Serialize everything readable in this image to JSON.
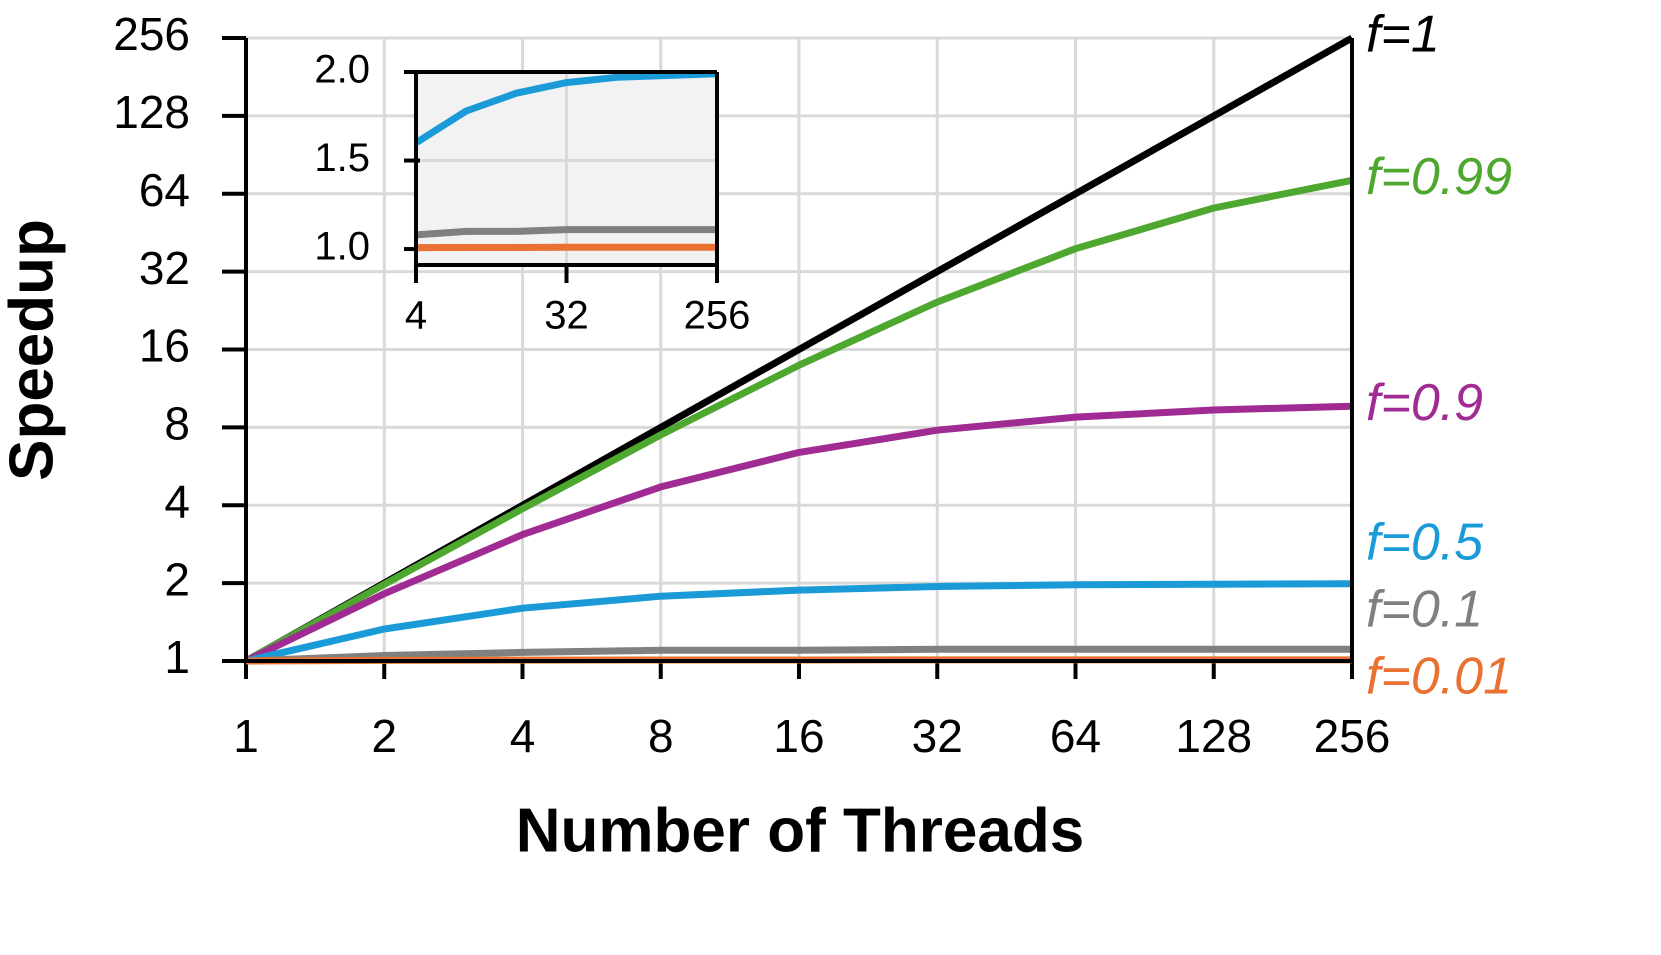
{
  "chart_data": [
    {
      "type": "line",
      "x_label": "Number of Threads",
      "y_label": "Speedup",
      "x": [
        1,
        2,
        4,
        8,
        16,
        32,
        64,
        128,
        256
      ],
      "xlim": [
        1,
        256
      ],
      "ylim": [
        1,
        256
      ],
      "xticks": [
        1,
        2,
        4,
        8,
        16,
        32,
        64,
        128,
        256
      ],
      "yticks": [
        1,
        2,
        4,
        8,
        16,
        32,
        64,
        128,
        256
      ],
      "log_x": true,
      "log_y": true,
      "grid": true,
      "series": [
        {
          "name": "f=1",
          "color": "#000000",
          "values": [
            1,
            2,
            4,
            8,
            16,
            32,
            64,
            128,
            256
          ]
        },
        {
          "name": "f=0.99",
          "color": "#4ea72e",
          "values": [
            1,
            1.98,
            3.88,
            7.48,
            13.91,
            24.43,
            39.26,
            56.39,
            72.11
          ]
        },
        {
          "name": "f=0.9",
          "color": "#a02b93",
          "values": [
            1,
            1.82,
            3.08,
            4.71,
            6.4,
            7.8,
            8.77,
            9.34,
            9.66
          ]
        },
        {
          "name": "f=0.5",
          "color": "#1a9bd7",
          "values": [
            1,
            1.33,
            1.6,
            1.78,
            1.88,
            1.94,
            1.97,
            1.98,
            1.99
          ]
        },
        {
          "name": "f=0.1",
          "color": "#808080",
          "values": [
            1,
            1.05,
            1.08,
            1.1,
            1.1,
            1.11,
            1.11,
            1.11,
            1.11
          ]
        },
        {
          "name": "f=0.01",
          "color": "#e97132",
          "values": [
            1,
            1.005,
            1.008,
            1.009,
            1.009,
            1.01,
            1.01,
            1.01,
            1.01
          ]
        }
      ]
    },
    {
      "type": "line",
      "x": [
        4,
        8,
        16,
        32,
        64,
        128,
        256
      ],
      "xlim": [
        4,
        256
      ],
      "ylim": [
        0.91,
        2.0
      ],
      "xticks": [
        4,
        32,
        256
      ],
      "yticks": [
        {
          "value": 1,
          "label": "1.0"
        },
        1.5,
        {
          "value": 2,
          "label": "2.0"
        }
      ],
      "log_x": true,
      "grid": true,
      "series": [
        {
          "color": "#1a9bd7",
          "values": [
            1.6,
            1.78,
            1.88,
            1.94,
            1.97,
            1.98,
            1.99
          ]
        },
        {
          "color": "#808080",
          "values": [
            1.08,
            1.1,
            1.1,
            1.11,
            1.11,
            1.11,
            1.11
          ]
        },
        {
          "color": "#e97132",
          "values": [
            1.008,
            1.009,
            1.009,
            1.01,
            1.01,
            1.01,
            1.01
          ]
        }
      ]
    }
  ]
}
